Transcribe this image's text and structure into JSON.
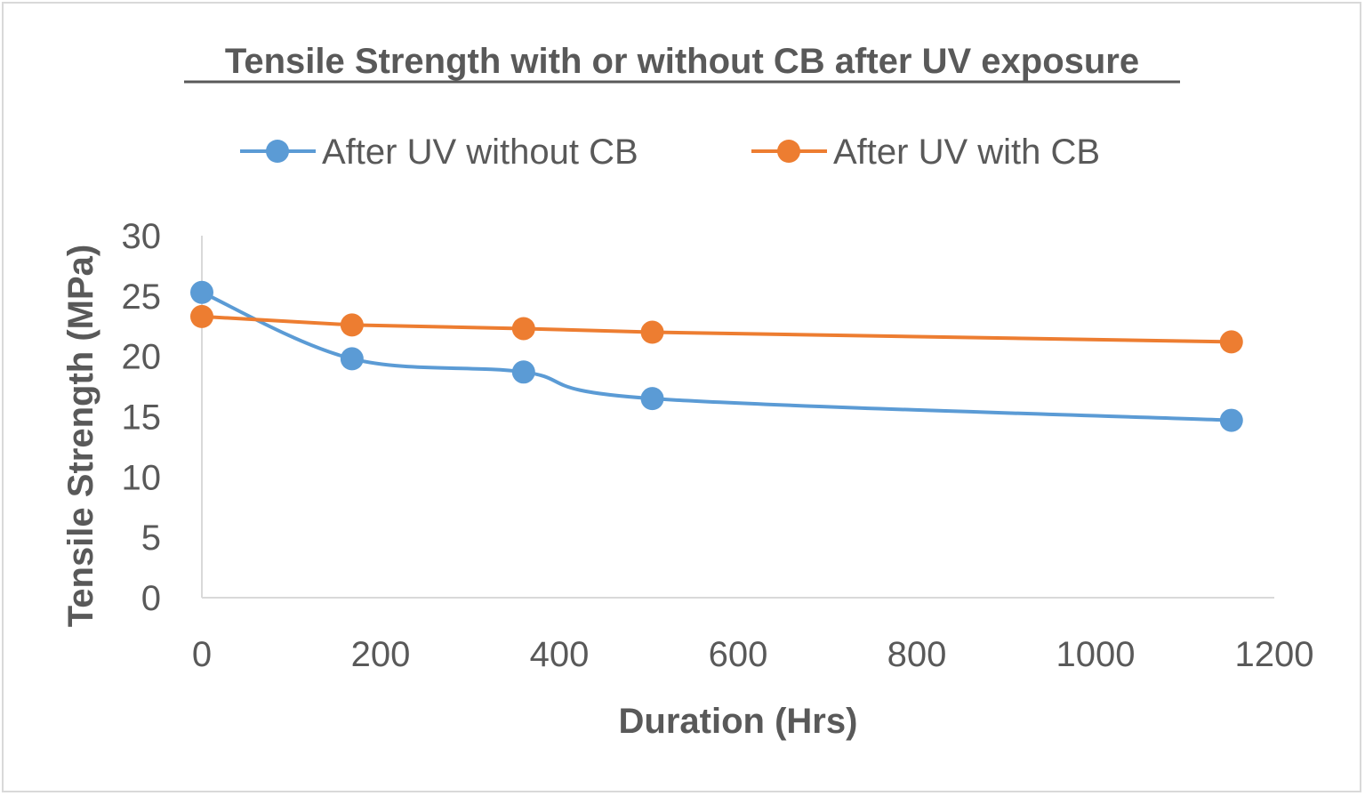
{
  "chart_data": {
    "type": "line",
    "title": "Tensile Strength with or without CB after UV exposure",
    "xlabel": "Duration (Hrs)",
    "ylabel": "Tensile Strength (MPa)",
    "xlim": [
      0,
      1200
    ],
    "ylim": [
      0,
      30
    ],
    "x_ticks": [
      "0",
      "200",
      "400",
      "600",
      "800",
      "1000",
      "1200"
    ],
    "y_ticks": [
      "0",
      "5",
      "10",
      "15",
      "20",
      "25",
      "30"
    ],
    "grid": false,
    "legend_position": "top",
    "series": [
      {
        "name": "After UV without CB",
        "color": "#5b9bd5",
        "smooth": true,
        "x": [
          0,
          168,
          360,
          504,
          1152
        ],
        "y": [
          25.3,
          19.8,
          18.7,
          16.5,
          14.7
        ]
      },
      {
        "name": "After UV with CB",
        "color": "#ed7d31",
        "smooth": false,
        "x": [
          0,
          168,
          360,
          504,
          1152
        ],
        "y": [
          23.3,
          22.6,
          22.3,
          22.0,
          21.2
        ]
      }
    ]
  }
}
